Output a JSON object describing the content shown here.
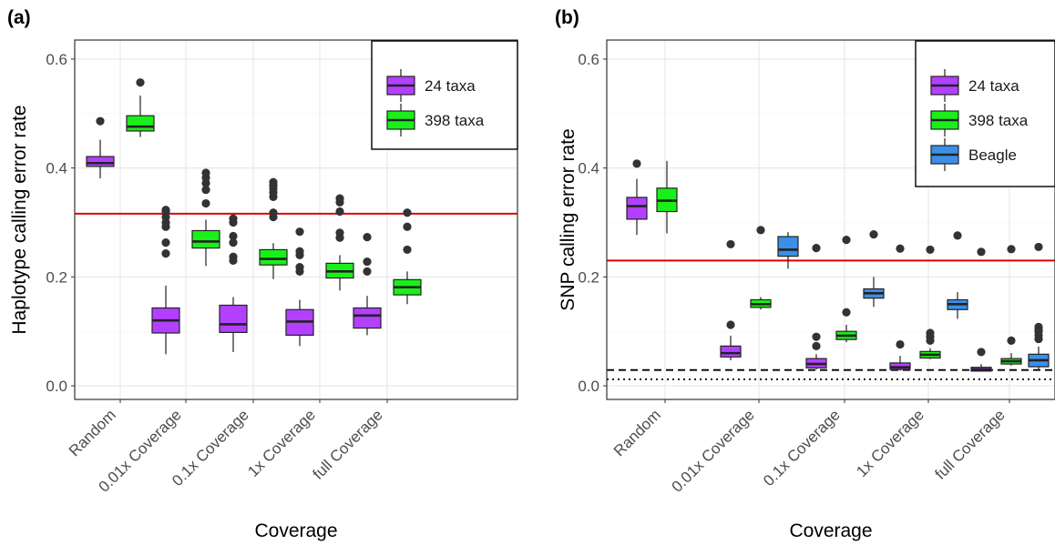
{
  "colors": {
    "taxa24": "#b340ff",
    "taxa398": "#19f019",
    "beagle": "#3b8fe8",
    "reference_line": "#e00000",
    "box_stroke": "#222222",
    "grid": "#e6e6e6"
  },
  "legend_icons": [
    "boxplot-key-icon"
  ],
  "chart_data": [
    {
      "type": "box",
      "panel_label": "(a)",
      "title": "",
      "xlabel": "Coverage",
      "ylabel": "Haplotype calling error rate",
      "ylim": [
        -0.025,
        0.635
      ],
      "yticks": [
        0.0,
        0.2,
        0.4,
        0.6
      ],
      "yticklabels": [
        "0.0",
        "0.2",
        "0.4",
        "0.6"
      ],
      "categories": [
        "Random",
        "0.01x Coverage",
        "0.1x Coverage",
        "1x Coverage",
        "full Coverage"
      ],
      "grid": true,
      "legend_position": "top-right",
      "reference_lines": [
        {
          "y": 0.316,
          "style": "solid",
          "color": "#e00000"
        }
      ],
      "series": [
        {
          "name": "24 taxa",
          "color": "#b340ff",
          "boxes": [
            {
              "min": 0.381,
              "q1": 0.403,
              "median": 0.409,
              "q3": 0.421,
              "max": 0.452,
              "outliers": [
                0.486
              ]
            },
            {
              "min": 0.058,
              "q1": 0.097,
              "median": 0.12,
              "q3": 0.143,
              "max": 0.184,
              "outliers": [
                0.243,
                0.263,
                0.292,
                0.3,
                0.31,
                0.32,
                0.323
              ]
            },
            {
              "min": 0.062,
              "q1": 0.098,
              "median": 0.113,
              "q3": 0.148,
              "max": 0.163,
              "outliers": [
                0.23,
                0.237,
                0.263,
                0.275,
                0.3,
                0.307
              ]
            },
            {
              "min": 0.073,
              "q1": 0.093,
              "median": 0.118,
              "q3": 0.14,
              "max": 0.158,
              "outliers": [
                0.21,
                0.218,
                0.24,
                0.247,
                0.283
              ]
            },
            {
              "min": 0.093,
              "q1": 0.106,
              "median": 0.129,
              "q3": 0.143,
              "max": 0.165,
              "outliers": [
                0.21,
                0.228,
                0.273
              ]
            }
          ]
        },
        {
          "name": "398 taxa",
          "color": "#19f019",
          "boxes": [
            {
              "min": 0.457,
              "q1": 0.468,
              "median": 0.476,
              "q3": 0.496,
              "max": 0.533,
              "outliers": [
                0.557
              ]
            },
            {
              "min": 0.22,
              "q1": 0.253,
              "median": 0.265,
              "q3": 0.285,
              "max": 0.305,
              "outliers": [
                0.335,
                0.36,
                0.372,
                0.382,
                0.391
              ]
            },
            {
              "min": 0.196,
              "q1": 0.222,
              "median": 0.233,
              "q3": 0.25,
              "max": 0.262,
              "outliers": [
                0.31,
                0.318,
                0.347,
                0.355,
                0.362,
                0.368,
                0.374
              ]
            },
            {
              "min": 0.175,
              "q1": 0.198,
              "median": 0.21,
              "q3": 0.225,
              "max": 0.24,
              "outliers": [
                0.272,
                0.281,
                0.32,
                0.337,
                0.344
              ]
            },
            {
              "min": 0.15,
              "q1": 0.167,
              "median": 0.181,
              "q3": 0.195,
              "max": 0.21,
              "outliers": [
                0.25,
                0.292,
                0.318
              ]
            }
          ]
        }
      ]
    },
    {
      "type": "box",
      "panel_label": "(b)",
      "title": "",
      "xlabel": "Coverage",
      "ylabel": "SNP calling error rate",
      "ylim": [
        -0.025,
        0.635
      ],
      "yticks": [
        0.0,
        0.2,
        0.4,
        0.6
      ],
      "yticklabels": [
        "0.0",
        "0.2",
        "0.4",
        "0.6"
      ],
      "categories": [
        "Random",
        "0.01x Coverage",
        "0.1x Coverage",
        "1x Coverage",
        "full Coverage"
      ],
      "grid": true,
      "legend_position": "top-right",
      "reference_lines": [
        {
          "y": 0.23,
          "style": "solid",
          "color": "#e00000"
        },
        {
          "y": 0.029,
          "style": "dashed",
          "color": "#000000"
        },
        {
          "y": 0.012,
          "style": "dotted",
          "color": "#000000"
        }
      ],
      "series": [
        {
          "name": "24 taxa",
          "color": "#b340ff",
          "boxes": [
            {
              "min": 0.277,
              "q1": 0.306,
              "median": 0.33,
              "q3": 0.346,
              "max": 0.38,
              "outliers": [
                0.408
              ]
            },
            {
              "min": 0.047,
              "q1": 0.053,
              "median": 0.06,
              "q3": 0.073,
              "max": 0.092,
              "outliers": [
                0.112,
                0.26
              ]
            },
            {
              "min": 0.03,
              "q1": 0.033,
              "median": 0.04,
              "q3": 0.05,
              "max": 0.058,
              "outliers": [
                0.073,
                0.09,
                0.253
              ]
            },
            {
              "min": 0.028,
              "q1": 0.03,
              "median": 0.034,
              "q3": 0.042,
              "max": 0.055,
              "outliers": [
                0.076,
                0.252
              ]
            },
            {
              "min": 0.026,
              "q1": 0.027,
              "median": 0.03,
              "q3": 0.034,
              "max": 0.04,
              "outliers": [
                0.062,
                0.246
              ]
            }
          ]
        },
        {
          "name": "398 taxa",
          "color": "#19f019",
          "boxes": [
            {
              "min": 0.28,
              "q1": 0.32,
              "median": 0.34,
              "q3": 0.363,
              "max": 0.413,
              "outliers": []
            },
            {
              "min": 0.14,
              "q1": 0.144,
              "median": 0.15,
              "q3": 0.158,
              "max": 0.163,
              "outliers": [
                0.286
              ]
            },
            {
              "min": 0.08,
              "q1": 0.085,
              "median": 0.092,
              "q3": 0.1,
              "max": 0.112,
              "outliers": [
                0.135,
                0.268
              ]
            },
            {
              "min": 0.049,
              "q1": 0.051,
              "median": 0.057,
              "q3": 0.063,
              "max": 0.069,
              "outliers": [
                0.083,
                0.09,
                0.097,
                0.25
              ]
            },
            {
              "min": 0.037,
              "q1": 0.04,
              "median": 0.045,
              "q3": 0.05,
              "max": 0.06,
              "outliers": [
                0.083,
                0.251
              ]
            }
          ]
        },
        {
          "name": "Beagle",
          "color": "#3b8fe8",
          "boxes": [
            null,
            {
              "min": 0.215,
              "q1": 0.238,
              "median": 0.25,
              "q3": 0.274,
              "max": 0.282,
              "outliers": []
            },
            {
              "min": 0.145,
              "q1": 0.161,
              "median": 0.17,
              "q3": 0.178,
              "max": 0.2,
              "outliers": [
                0.278
              ]
            },
            {
              "min": 0.123,
              "q1": 0.14,
              "median": 0.15,
              "q3": 0.158,
              "max": 0.172,
              "outliers": [
                0.276
              ]
            },
            {
              "min": 0.028,
              "q1": 0.035,
              "median": 0.047,
              "q3": 0.058,
              "max": 0.072,
              "outliers": [
                0.086,
                0.093,
                0.1,
                0.104,
                0.108,
                0.255
              ]
            }
          ]
        }
      ]
    }
  ]
}
